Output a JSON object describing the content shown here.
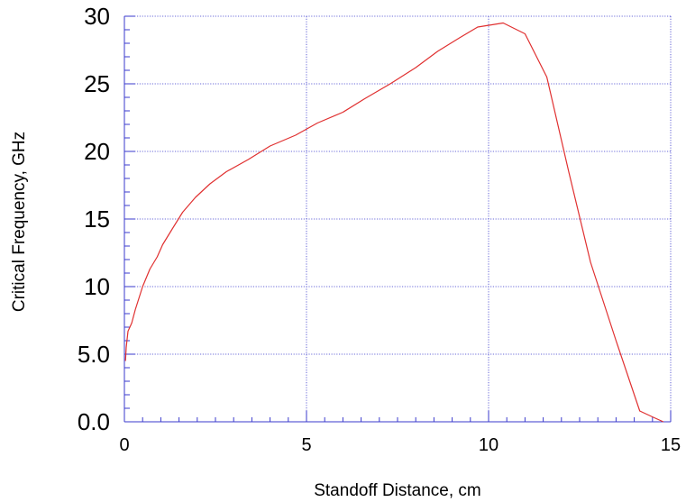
{
  "chart_data": {
    "type": "line",
    "title": "",
    "xlabel": "Standoff Distance, cm",
    "ylabel": "Critical Frequency, GHz",
    "xlim": [
      0,
      15
    ],
    "ylim": [
      0,
      30
    ],
    "grid": true,
    "x_ticks": [
      "0",
      "5",
      "10",
      "15"
    ],
    "y_ticks": [
      "0.0",
      "5.0",
      "10",
      "15",
      "20",
      "25",
      "30"
    ],
    "x_tick_values": [
      0,
      5,
      10,
      15
    ],
    "y_tick_values": [
      0,
      5,
      10,
      15,
      20,
      25,
      30
    ],
    "colors": {
      "axis": "#3a3acc",
      "grid": "#3a3acc",
      "series": "#e03030"
    },
    "series": [
      {
        "x": [
          0.03,
          0.05,
          0.1,
          0.2,
          0.3,
          0.5,
          0.7,
          0.9,
          1.05,
          1.3,
          1.6,
          1.95,
          2.35,
          2.8,
          3.4,
          4.0,
          4.7,
          5.3,
          6.0,
          6.6,
          7.3,
          8.0,
          8.6,
          9.2,
          9.7,
          10.4,
          11.0,
          11.6,
          12.2,
          12.8,
          13.5,
          14.15,
          14.55,
          14.8
        ],
        "y": [
          4.5,
          5.5,
          6.7,
          7.3,
          8.3,
          10.0,
          11.3,
          12.2,
          13.1,
          14.2,
          15.5,
          16.6,
          17.6,
          18.5,
          19.4,
          20.4,
          21.2,
          22.1,
          22.9,
          23.9,
          25.0,
          26.2,
          27.4,
          28.4,
          29.2,
          29.5,
          28.7,
          25.5,
          18.5,
          11.8,
          6.0,
          0.8,
          0.3,
          0.0
        ]
      }
    ]
  }
}
